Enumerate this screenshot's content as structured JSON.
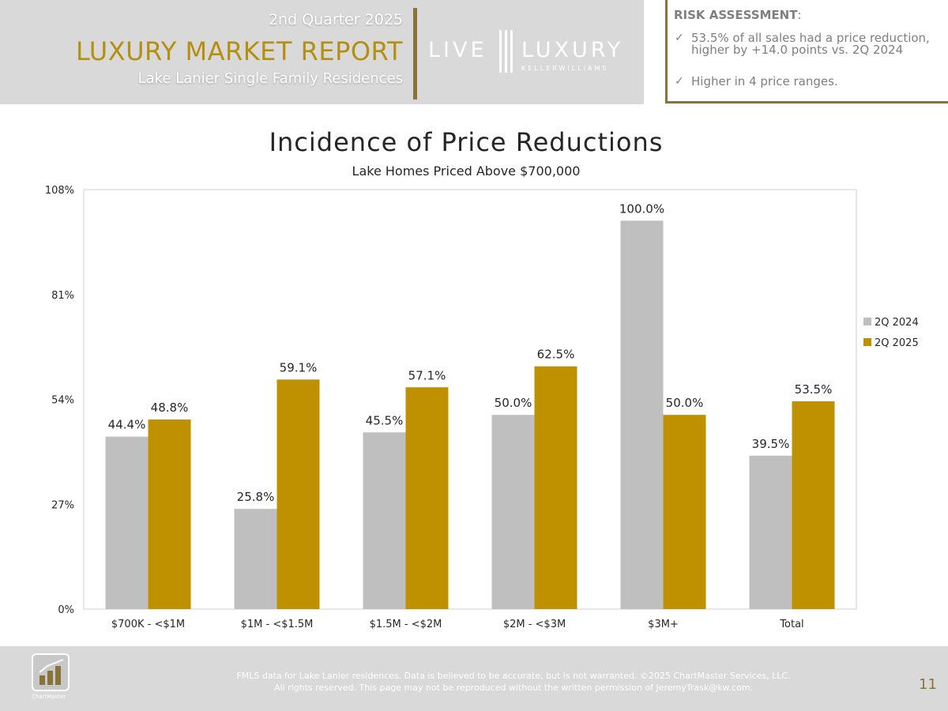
{
  "header": {
    "quarter": "2nd Quarter 2025",
    "title": "LUXURY MARKET REPORT",
    "subtitle": "Lake Lanier Single Family Residences",
    "logo_left": "LIVE",
    "logo_right": "LUXURY",
    "logo_sub": "KELLERWILLIAMS"
  },
  "risk": {
    "title": "RISK ASSESSMENT",
    "title_suffix": ":",
    "check_glyph": "✓",
    "items": [
      "53.5% of all sales had a price reduction, higher by +14.0 points vs. 2Q 2024",
      "Higher in 4 price ranges."
    ]
  },
  "chart_data": {
    "type": "bar",
    "title": "Incidence of Price Reductions",
    "subtitle": "Lake Homes Priced Above $700,000",
    "categories": [
      "$700K - <$1M",
      "$1M - <$1.5M",
      "$1.5M - <$2M",
      "$2M - <$3M",
      "$3M+",
      "Total"
    ],
    "series": [
      {
        "name": "2Q 2024",
        "values": [
          44.4,
          25.8,
          45.5,
          50.0,
          100.0,
          39.5
        ],
        "labels": [
          "44.4%",
          "25.8%",
          "45.5%",
          "50.0%",
          "100.0%",
          "39.5%"
        ],
        "color": "#bfbfbf"
      },
      {
        "name": "2Q 2025",
        "values": [
          48.8,
          59.1,
          57.1,
          62.5,
          50.0,
          53.5
        ],
        "labels": [
          "48.8%",
          "59.1%",
          "57.1%",
          "62.5%",
          "50.0%",
          "53.5%"
        ],
        "color": "#bf9000"
      }
    ],
    "ylim": [
      0,
      108
    ],
    "yticks": [
      0,
      27,
      54,
      81,
      108
    ],
    "ytick_labels": [
      "0%",
      "27%",
      "54%",
      "81%",
      "108%"
    ],
    "xlabel": "",
    "ylabel": "",
    "grid": false,
    "legend": "right"
  },
  "footer": {
    "disclaimer_line1": "FMLS data for Lake Lanier residences. Data is believed to be accurate, but is not warranted. ©2025 ChartMaster Services, LLC.",
    "disclaimer_line2": "All rights reserved. This page may not be reproduced without the written permission of JeremyTrask@kw.com.",
    "logo_text": "ChartMaster",
    "page_number": "11"
  }
}
